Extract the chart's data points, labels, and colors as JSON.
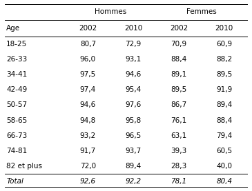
{
  "header_group": [
    "Hommes",
    "Femmes"
  ],
  "header_cols": [
    "Age",
    "2002",
    "2010",
    "2002",
    "2010"
  ],
  "rows": [
    [
      "18-25",
      "80,7",
      "72,9",
      "70,9",
      "60,9"
    ],
    [
      "26-33",
      "96,0",
      "93,1",
      "88,4",
      "88,2"
    ],
    [
      "34-41",
      "97,5",
      "94,6",
      "89,1",
      "89,5"
    ],
    [
      "42-49",
      "97,4",
      "95,4",
      "89,5",
      "91,9"
    ],
    [
      "50-57",
      "94,6",
      "97,6",
      "86,7",
      "89,4"
    ],
    [
      "58-65",
      "94,8",
      "95,8",
      "76,1",
      "88,4"
    ],
    [
      "66-73",
      "93,2",
      "96,5",
      "63,1",
      "79,4"
    ],
    [
      "74-81",
      "91,7",
      "93,7",
      "39,3",
      "60,5"
    ],
    [
      "82 et plus",
      "72,0",
      "89,4",
      "28,3",
      "40,0"
    ]
  ],
  "total_row": [
    "Total",
    "92,6",
    "92,2",
    "78,1",
    "80,4"
  ],
  "bg_color": "#ffffff",
  "text_color": "#000000",
  "line_color": "#000000",
  "font_size": 7.5
}
